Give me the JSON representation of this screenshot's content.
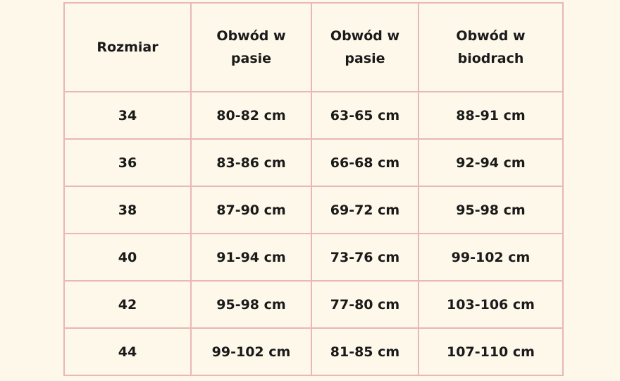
{
  "table": {
    "header": [
      "Rozmiar",
      "Obwód w pasie",
      "Obwód w pasie",
      "Obwód w biodrach"
    ],
    "rows": [
      [
        "34",
        "80-82 cm",
        "63-65 cm",
        "88-91 cm"
      ],
      [
        "36",
        "83-86 cm",
        "66-68 cm",
        "92-94 cm"
      ],
      [
        "38",
        "87-90 cm",
        "69-72 cm",
        "95-98 cm"
      ],
      [
        "40",
        "91-94 cm",
        "73-76 cm",
        "99-102 cm"
      ],
      [
        "42",
        "95-98 cm",
        "77-80 cm",
        "103-106 cm"
      ],
      [
        "44",
        "99-102 cm",
        "81-85 cm",
        "107-110 cm"
      ]
    ]
  }
}
